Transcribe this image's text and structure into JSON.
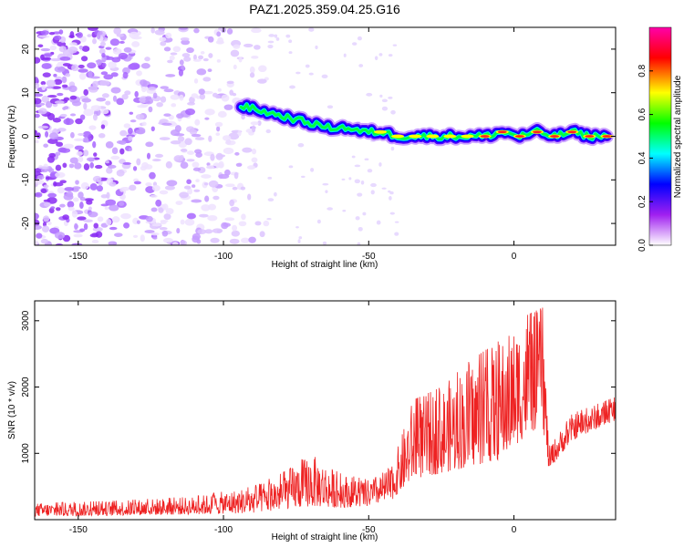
{
  "page_title": "PAZ1.2025.359.04.25.G16",
  "chart_data": [
    {
      "id": "spectrogram",
      "type": "heatmap",
      "title": "PAZ1.2025.359.04.25.G16",
      "xlabel": "Height of straight line (km)",
      "ylabel": "Frequency (Hz)",
      "xlim": [
        -165,
        35
      ],
      "ylim": [
        -25,
        25
      ],
      "xticks": [
        -150,
        -100,
        -50,
        0
      ],
      "yticks": [
        -20,
        -10,
        0,
        10,
        20
      ],
      "tone_track": [
        {
          "x": -94,
          "y": 7
        },
        {
          "x": -88,
          "y": 6
        },
        {
          "x": -82,
          "y": 5
        },
        {
          "x": -76,
          "y": 4
        },
        {
          "x": -70,
          "y": 3
        },
        {
          "x": -64,
          "y": 2
        },
        {
          "x": -58,
          "y": 2
        },
        {
          "x": -52,
          "y": 1
        },
        {
          "x": -46,
          "y": 1
        },
        {
          "x": -40,
          "y": 0
        },
        {
          "x": -34,
          "y": 0
        },
        {
          "x": -28,
          "y": 0
        },
        {
          "x": -22,
          "y": 0
        },
        {
          "x": -16,
          "y": 0
        },
        {
          "x": -10,
          "y": 0
        },
        {
          "x": -4,
          "y": 1
        },
        {
          "x": 2,
          "y": 0
        },
        {
          "x": 8,
          "y": 1
        },
        {
          "x": 14,
          "y": 0
        },
        {
          "x": 20,
          "y": 1
        },
        {
          "x": 26,
          "y": 0
        },
        {
          "x": 32,
          "y": 0
        }
      ],
      "colorbar": {
        "label": "Normalized spectral amplitude",
        "range": [
          0,
          1
        ],
        "ticks": [
          "0.0",
          "0.2",
          "0.4",
          "0.6",
          "0.8"
        ],
        "colors": [
          "#ffffff",
          "#a020f0",
          "#0000ff",
          "#00ffff",
          "#00ff00",
          "#ffff00",
          "#ff0000",
          "#ff00aa"
        ]
      }
    },
    {
      "id": "snr",
      "type": "line",
      "xlabel": "Height of straight line (km)",
      "ylabel": "SNR (10 * v/v)",
      "xlim": [
        -165,
        35
      ],
      "ylim": [
        0,
        3300
      ],
      "xticks": [
        -150,
        -100,
        -50,
        0
      ],
      "yticks": [
        1000,
        2000,
        3000
      ],
      "line_color": "#ee2222",
      "envelope": [
        {
          "x": -165,
          "low": 50,
          "high": 250
        },
        {
          "x": -140,
          "low": 60,
          "high": 280
        },
        {
          "x": -110,
          "low": 80,
          "high": 350
        },
        {
          "x": -90,
          "low": 100,
          "high": 500
        },
        {
          "x": -80,
          "low": 150,
          "high": 700
        },
        {
          "x": -70,
          "low": 200,
          "high": 1000
        },
        {
          "x": -60,
          "low": 180,
          "high": 700
        },
        {
          "x": -50,
          "low": 200,
          "high": 600
        },
        {
          "x": -42,
          "low": 300,
          "high": 800
        },
        {
          "x": -35,
          "low": 600,
          "high": 1800
        },
        {
          "x": -25,
          "low": 700,
          "high": 2000
        },
        {
          "x": -15,
          "low": 800,
          "high": 2400
        },
        {
          "x": -5,
          "low": 900,
          "high": 2700
        },
        {
          "x": 5,
          "low": 1300,
          "high": 3100
        },
        {
          "x": 10,
          "low": 1400,
          "high": 3200
        },
        {
          "x": 12,
          "low": 750,
          "high": 1100
        },
        {
          "x": 20,
          "low": 1200,
          "high": 1600
        },
        {
          "x": 35,
          "low": 1500,
          "high": 1850
        }
      ]
    }
  ]
}
